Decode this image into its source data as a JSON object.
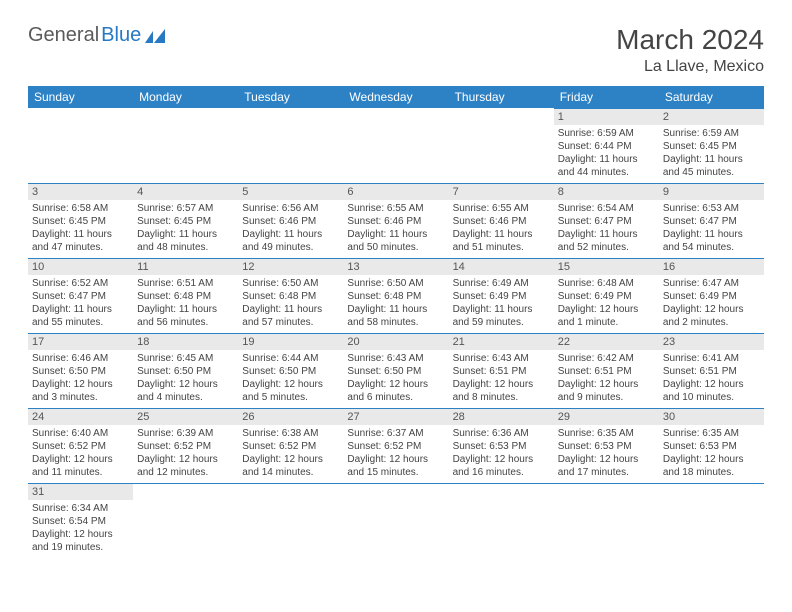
{
  "logo": {
    "word1": "General",
    "word2": "Blue"
  },
  "title": "March 2024",
  "location": "La Llave, Mexico",
  "colors": {
    "header_bg": "#2d81c5",
    "header_text": "#ffffff",
    "daynum_bg": "#e9e9e9",
    "row_divider": "#2d81c5",
    "text": "#444444",
    "logo_gray": "#5a5a5a",
    "logo_blue": "#2679c2"
  },
  "weekdays": [
    "Sunday",
    "Monday",
    "Tuesday",
    "Wednesday",
    "Thursday",
    "Friday",
    "Saturday"
  ],
  "weeks": [
    [
      {
        "blank": true
      },
      {
        "blank": true
      },
      {
        "blank": true
      },
      {
        "blank": true
      },
      {
        "blank": true
      },
      {
        "day": "1",
        "sunrise": "Sunrise: 6:59 AM",
        "sunset": "Sunset: 6:44 PM",
        "daylight1": "Daylight: 11 hours",
        "daylight2": "and 44 minutes."
      },
      {
        "day": "2",
        "sunrise": "Sunrise: 6:59 AM",
        "sunset": "Sunset: 6:45 PM",
        "daylight1": "Daylight: 11 hours",
        "daylight2": "and 45 minutes."
      }
    ],
    [
      {
        "day": "3",
        "sunrise": "Sunrise: 6:58 AM",
        "sunset": "Sunset: 6:45 PM",
        "daylight1": "Daylight: 11 hours",
        "daylight2": "and 47 minutes."
      },
      {
        "day": "4",
        "sunrise": "Sunrise: 6:57 AM",
        "sunset": "Sunset: 6:45 PM",
        "daylight1": "Daylight: 11 hours",
        "daylight2": "and 48 minutes."
      },
      {
        "day": "5",
        "sunrise": "Sunrise: 6:56 AM",
        "sunset": "Sunset: 6:46 PM",
        "daylight1": "Daylight: 11 hours",
        "daylight2": "and 49 minutes."
      },
      {
        "day": "6",
        "sunrise": "Sunrise: 6:55 AM",
        "sunset": "Sunset: 6:46 PM",
        "daylight1": "Daylight: 11 hours",
        "daylight2": "and 50 minutes."
      },
      {
        "day": "7",
        "sunrise": "Sunrise: 6:55 AM",
        "sunset": "Sunset: 6:46 PM",
        "daylight1": "Daylight: 11 hours",
        "daylight2": "and 51 minutes."
      },
      {
        "day": "8",
        "sunrise": "Sunrise: 6:54 AM",
        "sunset": "Sunset: 6:47 PM",
        "daylight1": "Daylight: 11 hours",
        "daylight2": "and 52 minutes."
      },
      {
        "day": "9",
        "sunrise": "Sunrise: 6:53 AM",
        "sunset": "Sunset: 6:47 PM",
        "daylight1": "Daylight: 11 hours",
        "daylight2": "and 54 minutes."
      }
    ],
    [
      {
        "day": "10",
        "sunrise": "Sunrise: 6:52 AM",
        "sunset": "Sunset: 6:47 PM",
        "daylight1": "Daylight: 11 hours",
        "daylight2": "and 55 minutes."
      },
      {
        "day": "11",
        "sunrise": "Sunrise: 6:51 AM",
        "sunset": "Sunset: 6:48 PM",
        "daylight1": "Daylight: 11 hours",
        "daylight2": "and 56 minutes."
      },
      {
        "day": "12",
        "sunrise": "Sunrise: 6:50 AM",
        "sunset": "Sunset: 6:48 PM",
        "daylight1": "Daylight: 11 hours",
        "daylight2": "and 57 minutes."
      },
      {
        "day": "13",
        "sunrise": "Sunrise: 6:50 AM",
        "sunset": "Sunset: 6:48 PM",
        "daylight1": "Daylight: 11 hours",
        "daylight2": "and 58 minutes."
      },
      {
        "day": "14",
        "sunrise": "Sunrise: 6:49 AM",
        "sunset": "Sunset: 6:49 PM",
        "daylight1": "Daylight: 11 hours",
        "daylight2": "and 59 minutes."
      },
      {
        "day": "15",
        "sunrise": "Sunrise: 6:48 AM",
        "sunset": "Sunset: 6:49 PM",
        "daylight1": "Daylight: 12 hours",
        "daylight2": "and 1 minute."
      },
      {
        "day": "16",
        "sunrise": "Sunrise: 6:47 AM",
        "sunset": "Sunset: 6:49 PM",
        "daylight1": "Daylight: 12 hours",
        "daylight2": "and 2 minutes."
      }
    ],
    [
      {
        "day": "17",
        "sunrise": "Sunrise: 6:46 AM",
        "sunset": "Sunset: 6:50 PM",
        "daylight1": "Daylight: 12 hours",
        "daylight2": "and 3 minutes."
      },
      {
        "day": "18",
        "sunrise": "Sunrise: 6:45 AM",
        "sunset": "Sunset: 6:50 PM",
        "daylight1": "Daylight: 12 hours",
        "daylight2": "and 4 minutes."
      },
      {
        "day": "19",
        "sunrise": "Sunrise: 6:44 AM",
        "sunset": "Sunset: 6:50 PM",
        "daylight1": "Daylight: 12 hours",
        "daylight2": "and 5 minutes."
      },
      {
        "day": "20",
        "sunrise": "Sunrise: 6:43 AM",
        "sunset": "Sunset: 6:50 PM",
        "daylight1": "Daylight: 12 hours",
        "daylight2": "and 6 minutes."
      },
      {
        "day": "21",
        "sunrise": "Sunrise: 6:43 AM",
        "sunset": "Sunset: 6:51 PM",
        "daylight1": "Daylight: 12 hours",
        "daylight2": "and 8 minutes."
      },
      {
        "day": "22",
        "sunrise": "Sunrise: 6:42 AM",
        "sunset": "Sunset: 6:51 PM",
        "daylight1": "Daylight: 12 hours",
        "daylight2": "and 9 minutes."
      },
      {
        "day": "23",
        "sunrise": "Sunrise: 6:41 AM",
        "sunset": "Sunset: 6:51 PM",
        "daylight1": "Daylight: 12 hours",
        "daylight2": "and 10 minutes."
      }
    ],
    [
      {
        "day": "24",
        "sunrise": "Sunrise: 6:40 AM",
        "sunset": "Sunset: 6:52 PM",
        "daylight1": "Daylight: 12 hours",
        "daylight2": "and 11 minutes."
      },
      {
        "day": "25",
        "sunrise": "Sunrise: 6:39 AM",
        "sunset": "Sunset: 6:52 PM",
        "daylight1": "Daylight: 12 hours",
        "daylight2": "and 12 minutes."
      },
      {
        "day": "26",
        "sunrise": "Sunrise: 6:38 AM",
        "sunset": "Sunset: 6:52 PM",
        "daylight1": "Daylight: 12 hours",
        "daylight2": "and 14 minutes."
      },
      {
        "day": "27",
        "sunrise": "Sunrise: 6:37 AM",
        "sunset": "Sunset: 6:52 PM",
        "daylight1": "Daylight: 12 hours",
        "daylight2": "and 15 minutes."
      },
      {
        "day": "28",
        "sunrise": "Sunrise: 6:36 AM",
        "sunset": "Sunset: 6:53 PM",
        "daylight1": "Daylight: 12 hours",
        "daylight2": "and 16 minutes."
      },
      {
        "day": "29",
        "sunrise": "Sunrise: 6:35 AM",
        "sunset": "Sunset: 6:53 PM",
        "daylight1": "Daylight: 12 hours",
        "daylight2": "and 17 minutes."
      },
      {
        "day": "30",
        "sunrise": "Sunrise: 6:35 AM",
        "sunset": "Sunset: 6:53 PM",
        "daylight1": "Daylight: 12 hours",
        "daylight2": "and 18 minutes."
      }
    ],
    [
      {
        "day": "31",
        "sunrise": "Sunrise: 6:34 AM",
        "sunset": "Sunset: 6:54 PM",
        "daylight1": "Daylight: 12 hours",
        "daylight2": "and 19 minutes."
      },
      {
        "blank": true
      },
      {
        "blank": true
      },
      {
        "blank": true
      },
      {
        "blank": true
      },
      {
        "blank": true
      },
      {
        "blank": true
      }
    ]
  ]
}
